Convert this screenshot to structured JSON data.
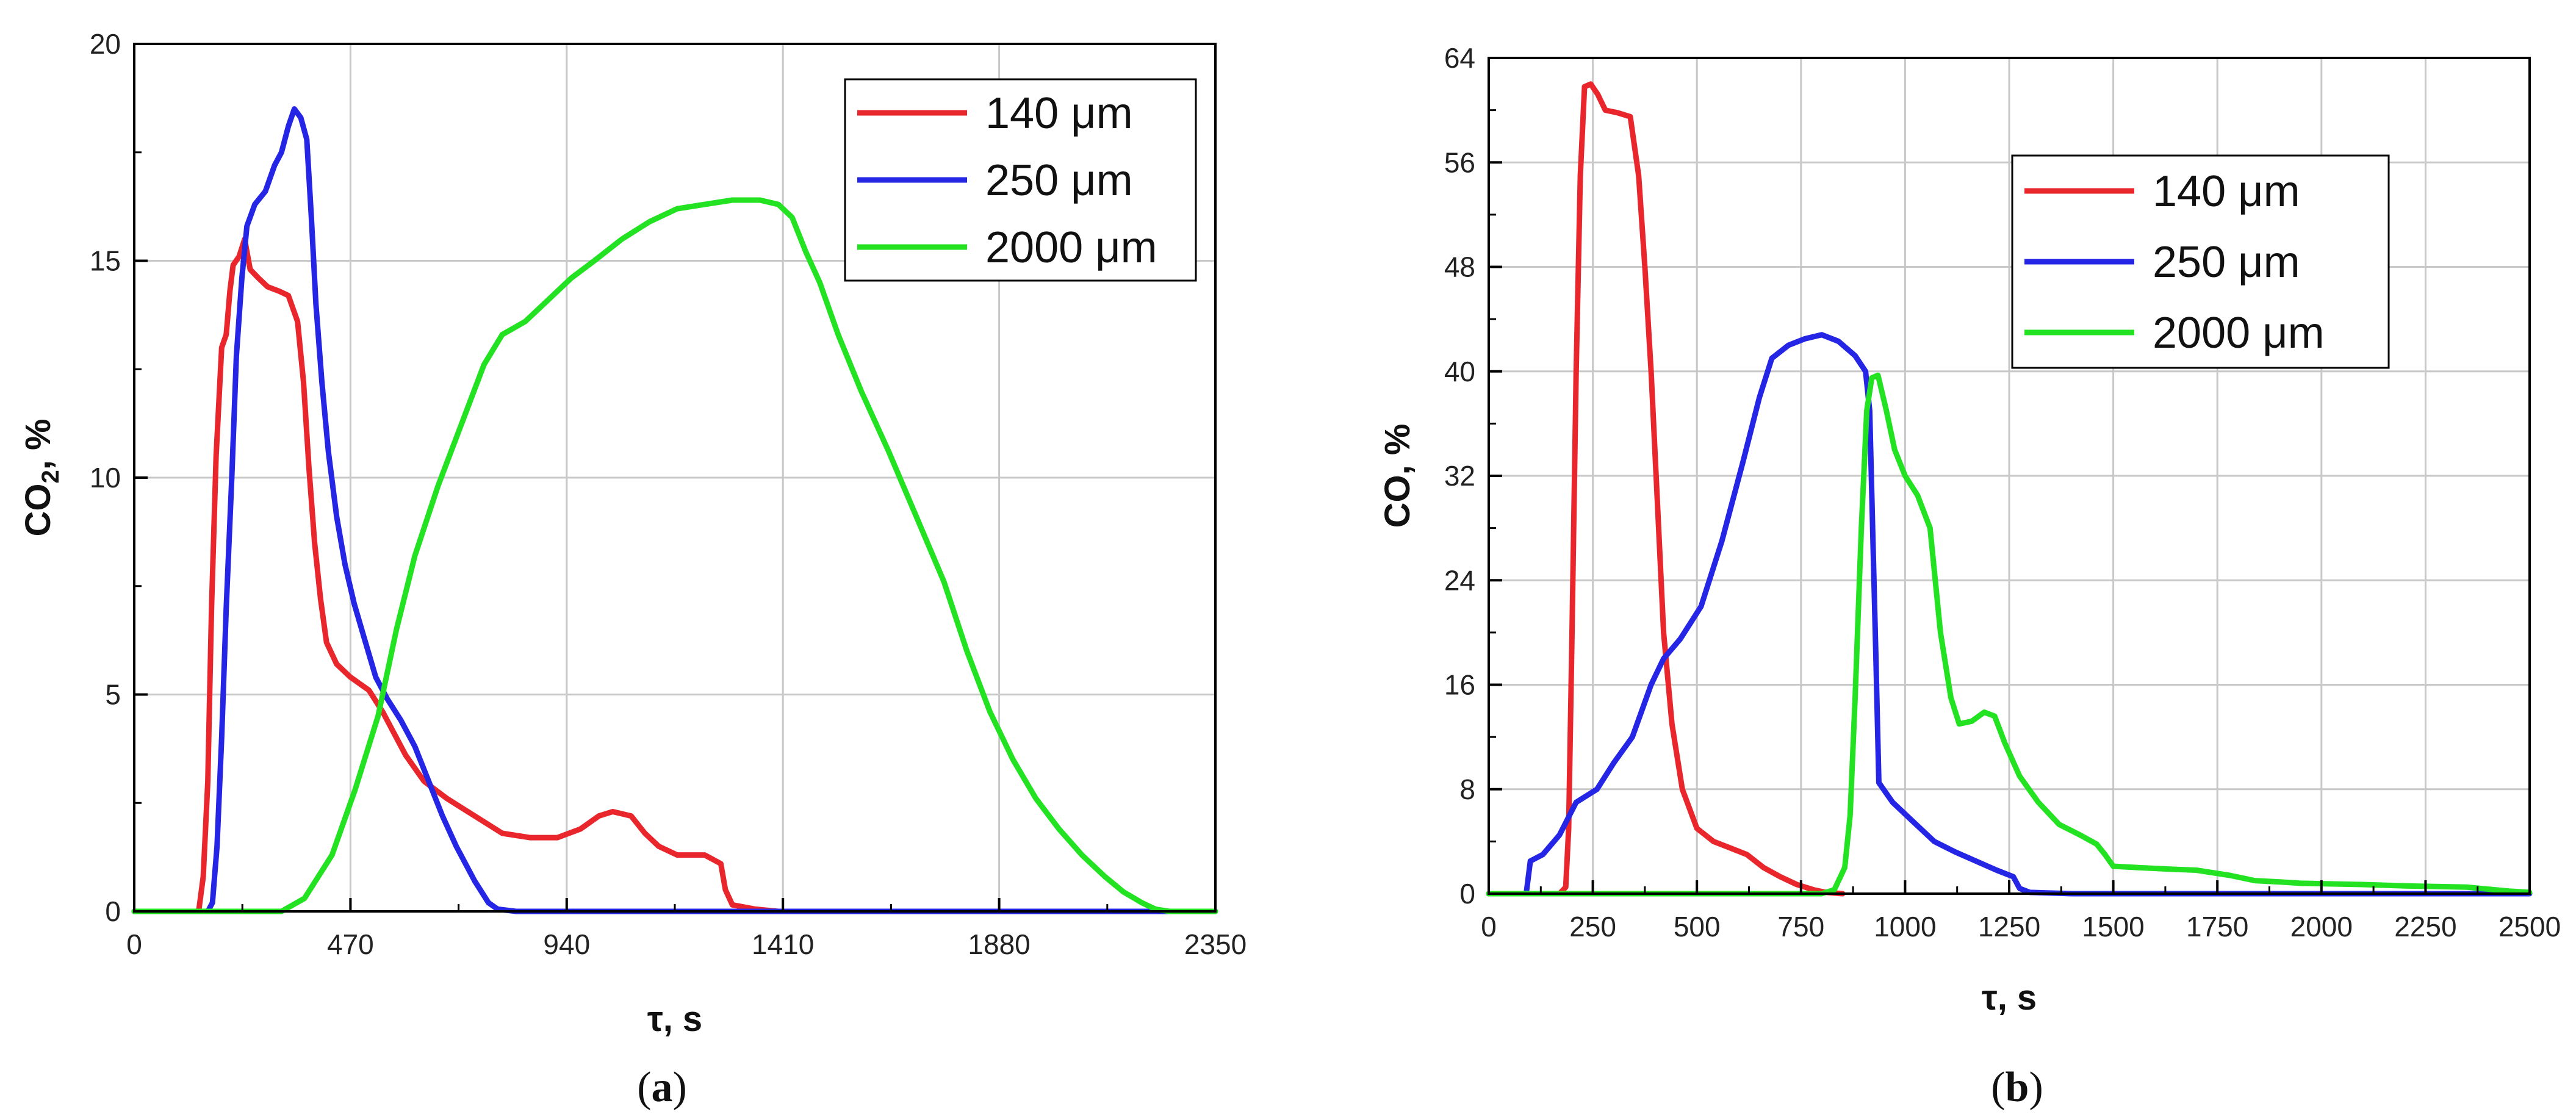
{
  "figure": {
    "captions": [
      {
        "open": "(",
        "letter": "a",
        "close": ")"
      },
      {
        "open": "(",
        "letter": "b",
        "close": ")"
      }
    ]
  },
  "colors": {
    "red": "#e8262c",
    "blue": "#2525e6",
    "green": "#22e222",
    "grid": "#c8c8c8",
    "frame": "#000000"
  },
  "chart_data": [
    {
      "type": "line",
      "panel": "a",
      "xlabel": "τ, s",
      "ylabel_main": "CO",
      "ylabel_sub": "2",
      "ylabel_tail": ", %",
      "xlim": [
        0,
        2350
      ],
      "ylim": [
        0,
        20
      ],
      "xticks": [
        0,
        470,
        940,
        1410,
        1880,
        2350
      ],
      "yticks": [
        0,
        5,
        10,
        15,
        20
      ],
      "grid": true,
      "legend_position": "top-right",
      "series": [
        {
          "name": "140 μm",
          "color": "#e8262c",
          "points": [
            [
              0,
              0
            ],
            [
              140,
              0
            ],
            [
              150,
              0.8
            ],
            [
              160,
              3
            ],
            [
              168,
              7
            ],
            [
              178,
              10.5
            ],
            [
              190,
              13
            ],
            [
              200,
              13.3
            ],
            [
              208,
              14.3
            ],
            [
              215,
              14.9
            ],
            [
              228,
              15.1
            ],
            [
              240,
              15.5
            ],
            [
              252,
              14.8
            ],
            [
              270,
              14.6
            ],
            [
              290,
              14.4
            ],
            [
              315,
              14.3
            ],
            [
              335,
              14.2
            ],
            [
              355,
              13.6
            ],
            [
              368,
              12.2
            ],
            [
              380,
              10.2
            ],
            [
              392,
              8.5
            ],
            [
              405,
              7.2
            ],
            [
              418,
              6.2
            ],
            [
              440,
              5.7
            ],
            [
              470,
              5.4
            ],
            [
              510,
              5.1
            ],
            [
              540,
              4.6
            ],
            [
              560,
              4.2
            ],
            [
              590,
              3.6
            ],
            [
              630,
              3
            ],
            [
              680,
              2.6
            ],
            [
              740,
              2.2
            ],
            [
              800,
              1.8
            ],
            [
              860,
              1.7
            ],
            [
              920,
              1.7
            ],
            [
              970,
              1.9
            ],
            [
              1010,
              2.2
            ],
            [
              1040,
              2.3
            ],
            [
              1080,
              2.2
            ],
            [
              1110,
              1.8
            ],
            [
              1140,
              1.5
            ],
            [
              1180,
              1.3
            ],
            [
              1240,
              1.3
            ],
            [
              1275,
              1.1
            ],
            [
              1285,
              0.5
            ],
            [
              1300,
              0.15
            ],
            [
              1350,
              0.05
            ],
            [
              1400,
              0
            ]
          ]
        },
        {
          "name": "250 μm",
          "color": "#2525e6",
          "points": [
            [
              0,
              0
            ],
            [
              160,
              0
            ],
            [
              170,
              0.2
            ],
            [
              180,
              1.5
            ],
            [
              190,
              4
            ],
            [
              200,
              7
            ],
            [
              212,
              10
            ],
            [
              222,
              12.8
            ],
            [
              234,
              14.6
            ],
            [
              245,
              15.8
            ],
            [
              262,
              16.3
            ],
            [
              285,
              16.6
            ],
            [
              305,
              17.2
            ],
            [
              320,
              17.5
            ],
            [
              335,
              18.1
            ],
            [
              348,
              18.5
            ],
            [
              362,
              18.3
            ],
            [
              375,
              17.8
            ],
            [
              385,
              16
            ],
            [
              395,
              14
            ],
            [
              408,
              12.2
            ],
            [
              422,
              10.6
            ],
            [
              440,
              9.1
            ],
            [
              458,
              8
            ],
            [
              478,
              7.1
            ],
            [
              500,
              6.3
            ],
            [
              525,
              5.4
            ],
            [
              550,
              4.9
            ],
            [
              580,
              4.4
            ],
            [
              610,
              3.8
            ],
            [
              640,
              3
            ],
            [
              670,
              2.2
            ],
            [
              700,
              1.5
            ],
            [
              740,
              0.7
            ],
            [
              770,
              0.2
            ],
            [
              790,
              0.05
            ],
            [
              830,
              0
            ],
            [
              2350,
              0
            ]
          ]
        },
        {
          "name": "2000 μm",
          "color": "#22e222",
          "points": [
            [
              0,
              0
            ],
            [
              320,
              0
            ],
            [
              370,
              0.3
            ],
            [
              430,
              1.3
            ],
            [
              480,
              2.8
            ],
            [
              530,
              4.5
            ],
            [
              570,
              6.5
            ],
            [
              610,
              8.2
            ],
            [
              660,
              9.8
            ],
            [
              710,
              11.2
            ],
            [
              760,
              12.6
            ],
            [
              800,
              13.3
            ],
            [
              850,
              13.6
            ],
            [
              900,
              14.1
            ],
            [
              950,
              14.6
            ],
            [
              1000,
              15
            ],
            [
              1060,
              15.5
            ],
            [
              1120,
              15.9
            ],
            [
              1180,
              16.2
            ],
            [
              1240,
              16.3
            ],
            [
              1300,
              16.4
            ],
            [
              1360,
              16.4
            ],
            [
              1400,
              16.3
            ],
            [
              1430,
              16
            ],
            [
              1460,
              15.2
            ],
            [
              1490,
              14.5
            ],
            [
              1530,
              13.3
            ],
            [
              1580,
              12
            ],
            [
              1640,
              10.6
            ],
            [
              1700,
              9.1
            ],
            [
              1760,
              7.6
            ],
            [
              1810,
              6
            ],
            [
              1860,
              4.6
            ],
            [
              1910,
              3.5
            ],
            [
              1960,
              2.6
            ],
            [
              2010,
              1.9
            ],
            [
              2060,
              1.3
            ],
            [
              2110,
              0.8
            ],
            [
              2150,
              0.45
            ],
            [
              2190,
              0.2
            ],
            [
              2220,
              0.05
            ],
            [
              2250,
              0
            ],
            [
              2350,
              0
            ]
          ]
        }
      ]
    },
    {
      "type": "line",
      "panel": "b",
      "xlabel": "τ, s",
      "ylabel_main": "CO",
      "ylabel_sub": "",
      "ylabel_tail": ", %",
      "xlim": [
        0,
        2500
      ],
      "ylim": [
        0,
        64
      ],
      "xticks": [
        0,
        250,
        500,
        750,
        1000,
        1250,
        1500,
        1750,
        2000,
        2250,
        2500
      ],
      "yticks": [
        0,
        8,
        16,
        24,
        32,
        40,
        48,
        56,
        64
      ],
      "grid": true,
      "legend_position": "upper-middle-right",
      "series": [
        {
          "name": "140 μm",
          "color": "#e8262c",
          "points": [
            [
              0,
              0
            ],
            [
              170,
              0
            ],
            [
              185,
              0.5
            ],
            [
              192,
              5
            ],
            [
              200,
              20
            ],
            [
              210,
              40
            ],
            [
              220,
              55
            ],
            [
              230,
              61.8
            ],
            [
              245,
              62
            ],
            [
              262,
              61.2
            ],
            [
              280,
              60
            ],
            [
              310,
              59.8
            ],
            [
              340,
              59.5
            ],
            [
              360,
              55
            ],
            [
              375,
              48
            ],
            [
              390,
              40
            ],
            [
              405,
              30
            ],
            [
              420,
              20
            ],
            [
              440,
              13
            ],
            [
              465,
              8
            ],
            [
              500,
              5
            ],
            [
              540,
              4
            ],
            [
              580,
              3.5
            ],
            [
              620,
              3
            ],
            [
              660,
              2
            ],
            [
              700,
              1.3
            ],
            [
              740,
              0.7
            ],
            [
              780,
              0.3
            ],
            [
              810,
              0.1
            ],
            [
              850,
              0
            ]
          ]
        },
        {
          "name": "250 μm",
          "color": "#2525e6",
          "points": [
            [
              0,
              0
            ],
            [
              90,
              0
            ],
            [
              100,
              2.5
            ],
            [
              130,
              3
            ],
            [
              170,
              4.5
            ],
            [
              210,
              7
            ],
            [
              260,
              8
            ],
            [
              300,
              10
            ],
            [
              345,
              12
            ],
            [
              390,
              16
            ],
            [
              420,
              18
            ],
            [
              460,
              19.5
            ],
            [
              510,
              22
            ],
            [
              560,
              27
            ],
            [
              610,
              33
            ],
            [
              650,
              38
            ],
            [
              680,
              41
            ],
            [
              720,
              42
            ],
            [
              760,
              42.5
            ],
            [
              800,
              42.8
            ],
            [
              840,
              42.3
            ],
            [
              880,
              41.2
            ],
            [
              905,
              40
            ],
            [
              915,
              37
            ],
            [
              922,
              28
            ],
            [
              930,
              18
            ],
            [
              937,
              8.5
            ],
            [
              970,
              7
            ],
            [
              1020,
              5.5
            ],
            [
              1070,
              4
            ],
            [
              1120,
              3.2
            ],
            [
              1170,
              2.5
            ],
            [
              1220,
              1.8
            ],
            [
              1260,
              1.3
            ],
            [
              1275,
              0.4
            ],
            [
              1300,
              0.1
            ],
            [
              1400,
              0
            ],
            [
              2500,
              0
            ]
          ]
        },
        {
          "name": "2000 μm",
          "color": "#22e222",
          "points": [
            [
              0,
              0
            ],
            [
              800,
              0
            ],
            [
              830,
              0.3
            ],
            [
              855,
              2
            ],
            [
              868,
              6
            ],
            [
              880,
              15
            ],
            [
              895,
              28
            ],
            [
              908,
              37
            ],
            [
              920,
              39.5
            ],
            [
              935,
              39.7
            ],
            [
              955,
              37
            ],
            [
              975,
              34
            ],
            [
              1000,
              32
            ],
            [
              1030,
              30.5
            ],
            [
              1060,
              28
            ],
            [
              1085,
              20
            ],
            [
              1110,
              15
            ],
            [
              1130,
              13
            ],
            [
              1160,
              13.2
            ],
            [
              1190,
              13.9
            ],
            [
              1215,
              13.6
            ],
            [
              1240,
              11.5
            ],
            [
              1275,
              9
            ],
            [
              1320,
              7
            ],
            [
              1370,
              5.3
            ],
            [
              1420,
              4.5
            ],
            [
              1460,
              3.8
            ],
            [
              1480,
              3
            ],
            [
              1500,
              2.1
            ],
            [
              1560,
              2
            ],
            [
              1620,
              1.9
            ],
            [
              1700,
              1.8
            ],
            [
              1780,
              1.4
            ],
            [
              1840,
              1
            ],
            [
              1900,
              0.9
            ],
            [
              1950,
              0.8
            ],
            [
              2100,
              0.7
            ],
            [
              2200,
              0.6
            ],
            [
              2350,
              0.5
            ],
            [
              2450,
              0.2
            ],
            [
              2500,
              0.1
            ]
          ]
        }
      ]
    }
  ]
}
